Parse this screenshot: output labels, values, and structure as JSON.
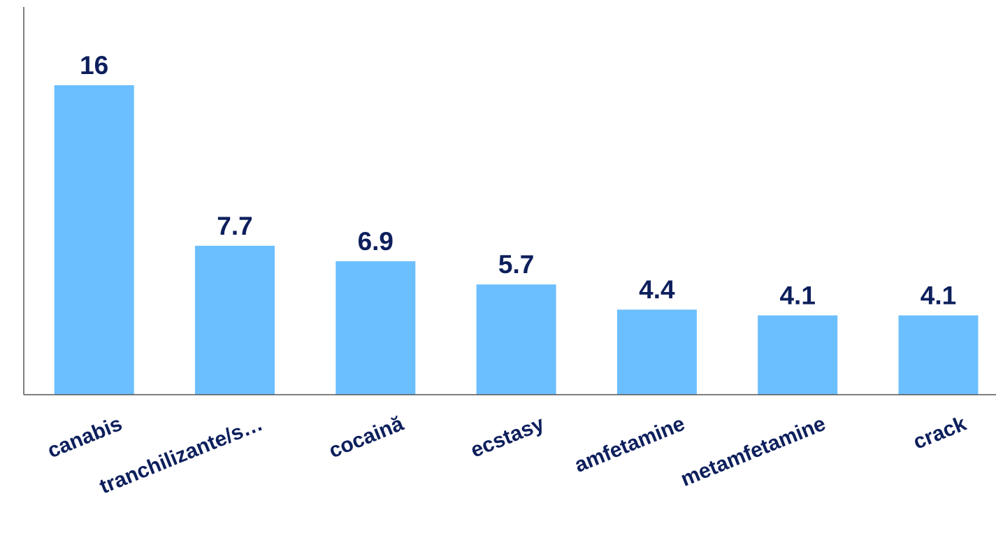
{
  "chart_data": {
    "type": "bar",
    "categories": [
      "canabis",
      "tranchilizante/s…",
      "cocaină",
      "ecstasy",
      "amfetamine",
      "metamfetamine",
      "crack"
    ],
    "values": [
      16,
      7.7,
      6.9,
      5.7,
      4.4,
      4.1,
      4.1
    ],
    "value_labels": [
      "16",
      "7.7",
      "6.9",
      "5.7",
      "4.4",
      "4.1",
      "4.1"
    ],
    "ylim": [
      0,
      20
    ],
    "grid": false,
    "legend": "none",
    "colors": {
      "bar": "#6bbfff",
      "label": "#0d1f5c",
      "axis": "#555555"
    }
  }
}
